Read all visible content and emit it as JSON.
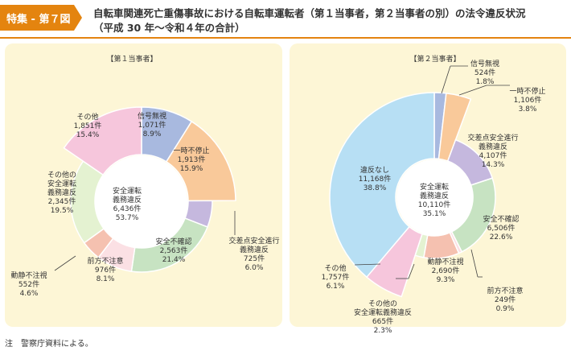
{
  "header": {
    "badge": "特集 - 第７図",
    "title_line1": "自転車関連死亡重傷事故における自転車運転者（第１当事者，第２当事者の別）の法令違反状況",
    "title_line2": "（平成 30 年～令和４年の合計）"
  },
  "note": "注　警察庁資料による。",
  "colors": {
    "accent": "#e4840f",
    "panel": "#fdf6d6"
  },
  "chart_data": [
    {
      "type": "pie",
      "title": "【第１当事者】",
      "unit": "件",
      "center_label": [
        "安全運転",
        "義務違反",
        "6,436件",
        "53.7%"
      ],
      "slices": [
        {
          "name": "信号無視",
          "value": 1071,
          "value_label": "1,071件",
          "pct_label": "8.9%",
          "color": "#a8b9df",
          "ring": "outer"
        },
        {
          "name": "一時不停止",
          "value": 1913,
          "value_label": "1,913件",
          "pct_label": "15.9%",
          "color": "#f9c99a",
          "ring": "outer"
        },
        {
          "name": "交差点安全進行義務違反",
          "value": 725,
          "value_label": "725件",
          "pct_label": "6.0%",
          "color": "#c5b8de",
          "ring": "inner"
        },
        {
          "name": "安全不確認",
          "value": 2563,
          "value_label": "2,563件",
          "pct_label": "21.4%",
          "color": "#c7e3c2",
          "ring": "inner"
        },
        {
          "name": "前方不注意",
          "value": 976,
          "value_label": "976件",
          "pct_label": "8.1%",
          "color": "#fbe0e4",
          "ring": "inner"
        },
        {
          "name": "動静不注視",
          "value": 552,
          "value_label": "552件",
          "pct_label": "4.6%",
          "color": "#f5c1b0",
          "ring": "inner"
        },
        {
          "name": "その他の安全運転義務違反",
          "value": 2345,
          "value_label": "2,345件",
          "pct_label": "19.5%",
          "color": "#e4f2d1",
          "ring": "inner"
        },
        {
          "name": "その他",
          "value": 1851,
          "value_label": "1,851件",
          "pct_label": "15.4%",
          "color": "#f6c6dc",
          "ring": "outer"
        }
      ]
    },
    {
      "type": "pie",
      "title": "【第２当事者】",
      "unit": "件",
      "center_label": [
        "安全運転",
        "義務違反",
        "10,110件",
        "35.1%"
      ],
      "slices": [
        {
          "name": "信号無視",
          "value": 524,
          "value_label": "524件",
          "pct_label": "1.8%",
          "color": "#a8b9df",
          "ring": "outer"
        },
        {
          "name": "一時不停止",
          "value": 1106,
          "value_label": "1,106件",
          "pct_label": "3.8%",
          "color": "#f9c99a",
          "ring": "outer"
        },
        {
          "name": "交差点安全進行義務違反",
          "value": 4107,
          "value_label": "4,107件",
          "pct_label": "14.3%",
          "color": "#c5b8de",
          "ring": "inner"
        },
        {
          "name": "安全不確認",
          "value": 6506,
          "value_label": "6,506件",
          "pct_label": "22.6%",
          "color": "#c7e3c2",
          "ring": "inner"
        },
        {
          "name": "前方不注意",
          "value": 249,
          "value_label": "249件",
          "pct_label": "0.9%",
          "color": "#fbe0e4",
          "ring": "inner"
        },
        {
          "name": "動静不注視",
          "value": 2690,
          "value_label": "2,690件",
          "pct_label": "9.3%",
          "color": "#f5c1b0",
          "ring": "inner"
        },
        {
          "name": "その他の安全運転義務違反",
          "value": 665,
          "value_label": "665件",
          "pct_label": "2.3%",
          "color": "#e4f2d1",
          "ring": "inner"
        },
        {
          "name": "その他",
          "value": 1757,
          "value_label": "1,757件",
          "pct_label": "6.1%",
          "color": "#f6c6dc",
          "ring": "outer"
        },
        {
          "name": "違反なし",
          "value": 11168,
          "value_label": "11,168件",
          "pct_label": "38.8%",
          "color": "#b7dff4",
          "ring": "outer"
        }
      ]
    }
  ]
}
